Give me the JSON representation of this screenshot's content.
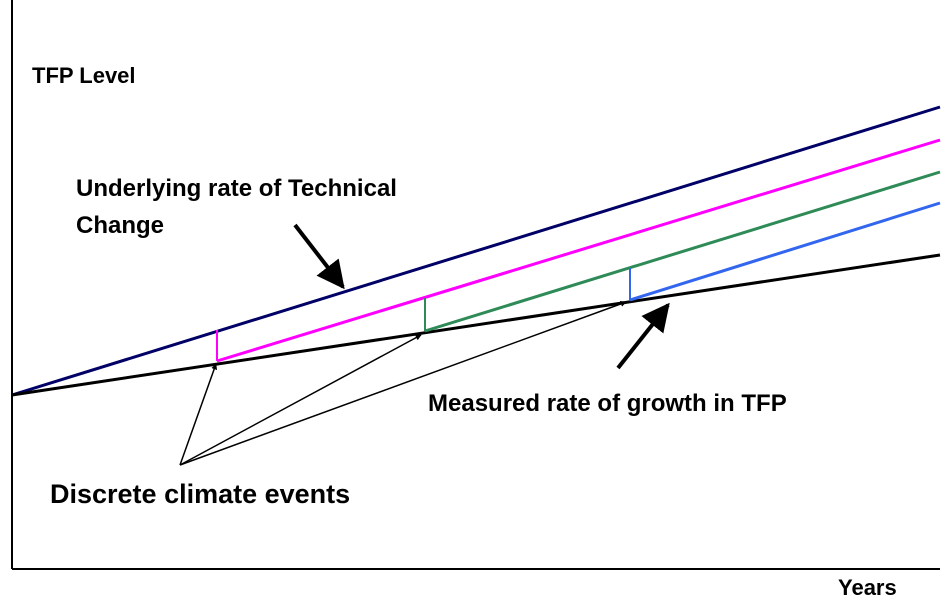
{
  "axes": {
    "y_label": "TFP Level",
    "x_label": "Years"
  },
  "annotations": {
    "underlying": [
      "Underlying rate of Technical",
      "Change"
    ],
    "measured": "Measured rate of growth in TFP",
    "events": "Discrete climate events"
  }
}
